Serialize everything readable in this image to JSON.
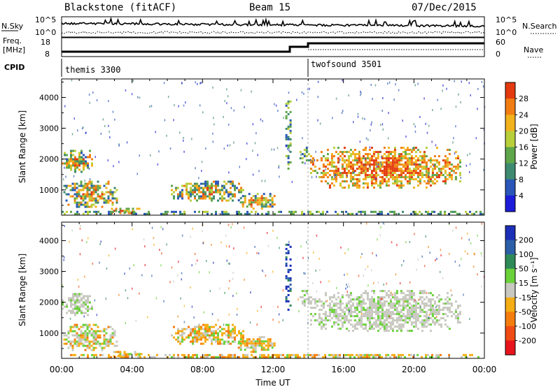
{
  "header": {
    "station": "Blackstone (fitACF)",
    "beam": "Beam 15",
    "date": "07/Dec/2015"
  },
  "noise_panel": {
    "left_label": "N.Sky",
    "right_label": "N.Search",
    "left_ticks": [
      "10^5",
      "10^0"
    ],
    "right_ticks": [
      "10^5",
      "10^0"
    ]
  },
  "freq_panel": {
    "left_label_1": "Freq.",
    "left_label_2": "[MHz]",
    "left_ticks": [
      "18",
      "8"
    ],
    "right_label": "Nave",
    "right_ticks": [
      "60",
      "0"
    ]
  },
  "cpid_panel": {
    "label": "CPID",
    "modes": [
      {
        "name": "themis 3300",
        "start_hour": 0
      },
      {
        "name": "twofsound 3501",
        "start_hour": 14
      }
    ]
  },
  "chart_data": [
    {
      "type": "heatmap",
      "panel": "power",
      "ylabel": "Slant Range [km]",
      "y_ticks": [
        "1000",
        "2000",
        "3000",
        "4000"
      ],
      "ylim": [
        180,
        4600
      ],
      "xlim_hours": [
        0,
        24
      ],
      "colorbar": {
        "label": "Power [dB]",
        "ticks": [
          "4",
          "8",
          "12",
          "16",
          "20",
          "24",
          "28"
        ],
        "colors": [
          "#1c1cd9",
          "#2a56b8",
          "#3e8a70",
          "#5fa64a",
          "#b9cf3a",
          "#f2b21c",
          "#f27d12",
          "#e33a10"
        ]
      },
      "scatter_regions": [
        {
          "t0": 0.0,
          "t1": 1.9,
          "r0": 1500,
          "r1": 2300,
          "level": "mid"
        },
        {
          "t0": 0.1,
          "t1": 3.3,
          "r0": 400,
          "r1": 1300,
          "level": "mid"
        },
        {
          "t0": 2.8,
          "t1": 4.6,
          "r0": 200,
          "r1": 420,
          "level": "high"
        },
        {
          "t0": 6.2,
          "t1": 10.4,
          "r0": 600,
          "r1": 1300,
          "level": "mid"
        },
        {
          "t0": 10.0,
          "t1": 12.2,
          "r0": 300,
          "r1": 900,
          "level": "mid"
        },
        {
          "t0": 12.7,
          "t1": 13.1,
          "r0": 1600,
          "r1": 3900,
          "level": "low"
        },
        {
          "t0": 13.5,
          "t1": 14.2,
          "r0": 1800,
          "r1": 2400,
          "level": "low"
        },
        {
          "t0": 14.1,
          "t1": 22.8,
          "r0": 1000,
          "r1": 2400,
          "level": "high"
        },
        {
          "t0": 0.0,
          "t1": 24.0,
          "r0": 180,
          "r1": 320,
          "level": "low"
        }
      ]
    },
    {
      "type": "heatmap",
      "panel": "velocity",
      "ylabel": "Slant Range [km]",
      "xlabel": "Time UT",
      "y_ticks": [
        "1000",
        "2000",
        "3000",
        "4000"
      ],
      "x_ticks": [
        "00:00",
        "04:00",
        "08:00",
        "12:00",
        "16:00",
        "20:00",
        "00:00"
      ],
      "ylim": [
        180,
        4600
      ],
      "xlim_hours": [
        0,
        24
      ],
      "colorbar": {
        "label": "Velocity [m s⁻¹]",
        "ticks": [
          "200",
          "100",
          "50",
          "15",
          "-15",
          "-50",
          "-100",
          "-200"
        ],
        "colors": [
          "#1c2fb8",
          "#2b5fa8",
          "#2e8a58",
          "#6bd23a",
          "#c8c8c0",
          "#f5ad14",
          "#f47d0e",
          "#f04b14",
          "#e8141c"
        ]
      },
      "scatter_regions": [
        {
          "t0": 0.0,
          "t1": 1.9,
          "r0": 1500,
          "r1": 2300,
          "level": "gray"
        },
        {
          "t0": 0.1,
          "t1": 3.3,
          "r0": 400,
          "r1": 1300,
          "level": "mixed"
        },
        {
          "t0": 2.8,
          "t1": 4.6,
          "r0": 200,
          "r1": 420,
          "level": "orange"
        },
        {
          "t0": 6.2,
          "t1": 10.4,
          "r0": 600,
          "r1": 1300,
          "level": "orange"
        },
        {
          "t0": 10.0,
          "t1": 12.2,
          "r0": 300,
          "r1": 900,
          "level": "orange"
        },
        {
          "t0": 12.7,
          "t1": 13.1,
          "r0": 1600,
          "r1": 3900,
          "level": "blue"
        },
        {
          "t0": 13.5,
          "t1": 14.2,
          "r0": 1800,
          "r1": 2400,
          "level": "gray"
        },
        {
          "t0": 14.1,
          "t1": 22.8,
          "r0": 1000,
          "r1": 2400,
          "level": "gray"
        },
        {
          "t0": 0.0,
          "t1": 24.0,
          "r0": 180,
          "r1": 320,
          "level": "orange"
        }
      ]
    }
  ]
}
